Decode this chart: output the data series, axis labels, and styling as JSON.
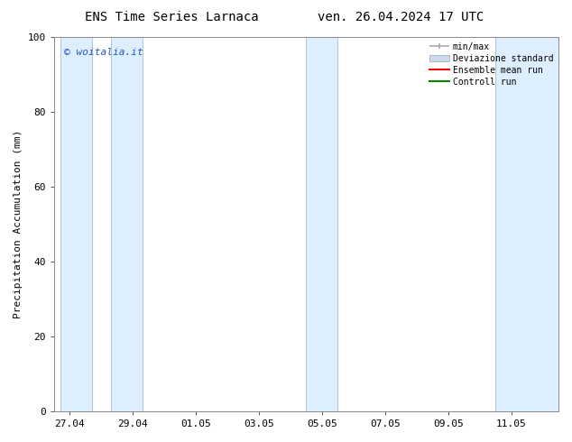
{
  "title_left": "ENS Time Series Larnaca",
  "title_right": "ven. 26.04.2024 17 UTC",
  "ylabel": "Precipitation Accumulation (mm)",
  "ylim": [
    0,
    100
  ],
  "yticks": [
    0,
    20,
    40,
    60,
    80,
    100
  ],
  "xtick_labels": [
    "27.04",
    "29.04",
    "01.05",
    "03.05",
    "05.05",
    "07.05",
    "09.05",
    "11.05"
  ],
  "bg_color": "#ffffff",
  "plot_bg_color": "#ffffff",
  "band_color": "#ddeeff",
  "watermark_text": "© woitalia.it",
  "watermark_color": "#2255cc",
  "legend_entries": [
    "min/max",
    "Deviazione standard",
    "Ensemble mean run",
    "Controll run"
  ],
  "legend_colors_line": [
    "#aaaaaa",
    "#bbccdd",
    "#ff0000",
    "#008800"
  ],
  "font_size_title": 10,
  "font_size_axis": 8,
  "font_size_tick": 8,
  "font_size_watermark": 8,
  "font_size_legend": 7,
  "shaded_bands": [
    [
      -0.3,
      0.7
    ],
    [
      1.3,
      2.3
    ],
    [
      7.5,
      8.5
    ],
    [
      13.5,
      15.5
    ]
  ],
  "x_ticks": [
    0,
    2,
    4,
    6,
    8,
    10,
    12,
    14
  ],
  "xlim": [
    -0.5,
    15.5
  ]
}
